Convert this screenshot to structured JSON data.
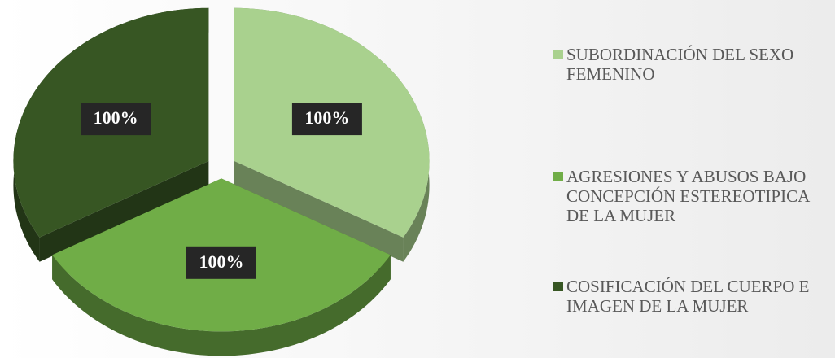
{
  "chart_data": {
    "type": "pie",
    "categories": [
      "SUBORDINACIÓN DEL SEXO FEMENINO",
      "AGRESIONES Y ABUSOS BAJO CONCEPCIÓN ESTEREOTIPICA DE LA MUJER",
      "COSIFICACIÓN DEL CUERPO E IMAGEN DE LA MUJER"
    ],
    "values": [
      100,
      100,
      100
    ],
    "value_labels": [
      "100%",
      "100%",
      "100%"
    ],
    "colors": [
      "#a9d18e",
      "#70ad47",
      "#375623"
    ]
  }
}
